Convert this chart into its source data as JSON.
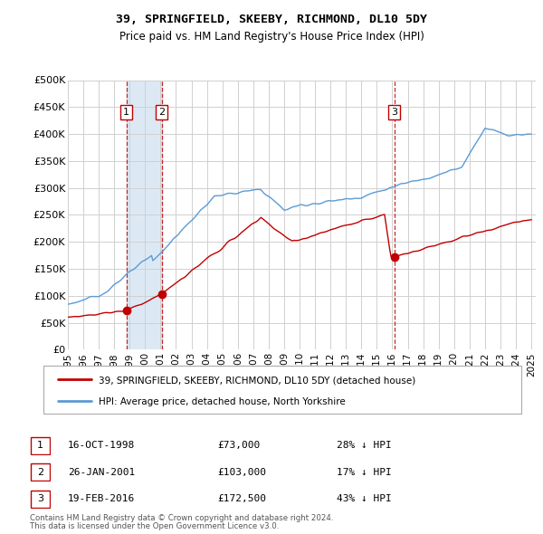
{
  "title": "39, SPRINGFIELD, SKEEBY, RICHMOND, DL10 5DY",
  "subtitle": "Price paid vs. HM Land Registry's House Price Index (HPI)",
  "legend_line1": "39, SPRINGFIELD, SKEEBY, RICHMOND, DL10 5DY (detached house)",
  "legend_line2": "HPI: Average price, detached house, North Yorkshire",
  "footer1": "Contains HM Land Registry data © Crown copyright and database right 2024.",
  "footer2": "This data is licensed under the Open Government Licence v3.0.",
  "transactions": [
    {
      "label": "1",
      "date": "16-OCT-1998",
      "price": 73000,
      "hpi_diff": "28% ↓ HPI",
      "x": 1998.79
    },
    {
      "label": "2",
      "date": "26-JAN-2001",
      "price": 103000,
      "hpi_diff": "17% ↓ HPI",
      "x": 2001.07
    },
    {
      "label": "3",
      "date": "19-FEB-2016",
      "price": 172500,
      "hpi_diff": "43% ↓ HPI",
      "x": 2016.13
    }
  ],
  "hpi_color": "#5b9bd5",
  "price_color": "#c00000",
  "vline_color": "#c00000",
  "shade_color": "#dce9f5",
  "bg_color": "#ffffff",
  "grid_color": "#d0d0d0",
  "ylim": [
    0,
    500000
  ],
  "yticks": [
    0,
    50000,
    100000,
    150000,
    200000,
    250000,
    300000,
    350000,
    400000,
    450000,
    500000
  ],
  "xlim": [
    1995.0,
    2025.3
  ],
  "xticks": [
    1995,
    1996,
    1997,
    1998,
    1999,
    2000,
    2001,
    2002,
    2003,
    2004,
    2005,
    2006,
    2007,
    2008,
    2009,
    2010,
    2011,
    2012,
    2013,
    2014,
    2015,
    2016,
    2017,
    2018,
    2019,
    2020,
    2021,
    2022,
    2023,
    2024,
    2025
  ]
}
